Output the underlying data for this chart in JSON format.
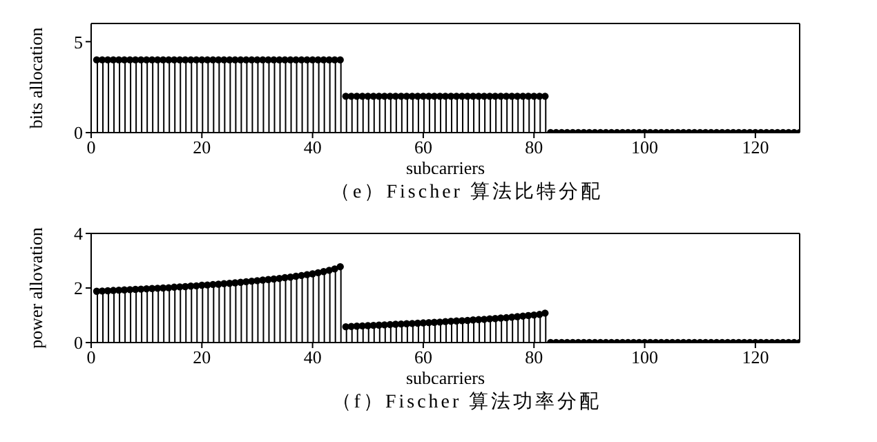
{
  "chart_data": [
    {
      "type": "lollipop",
      "title": "（e）Fischer 算法比特分配",
      "xlabel": "subcarriers",
      "ylabel": "bits allocation",
      "marker": "circle",
      "xlim": [
        0,
        128
      ],
      "xticks": [
        0,
        20,
        40,
        60,
        80,
        100,
        120
      ],
      "ylim": [
        0,
        6
      ],
      "yticks": [
        0,
        5
      ],
      "x": [
        1,
        2,
        3,
        4,
        5,
        6,
        7,
        8,
        9,
        10,
        11,
        12,
        13,
        14,
        15,
        16,
        17,
        18,
        19,
        20,
        21,
        22,
        23,
        24,
        25,
        26,
        27,
        28,
        29,
        30,
        31,
        32,
        33,
        34,
        35,
        36,
        37,
        38,
        39,
        40,
        41,
        42,
        43,
        44,
        45,
        46,
        47,
        48,
        49,
        50,
        51,
        52,
        53,
        54,
        55,
        56,
        57,
        58,
        59,
        60,
        61,
        62,
        63,
        64,
        65,
        66,
        67,
        68,
        69,
        70,
        71,
        72,
        73,
        74,
        75,
        76,
        77,
        78,
        79,
        80,
        81,
        82,
        83,
        84,
        85,
        86,
        87,
        88,
        89,
        90,
        91,
        92,
        93,
        94,
        95,
        96,
        97,
        98,
        99,
        100,
        101,
        102,
        103,
        104,
        105,
        106,
        107,
        108,
        109,
        110,
        111,
        112,
        113,
        114,
        115,
        116,
        117,
        118,
        119,
        120,
        121,
        122,
        123,
        124,
        125,
        126,
        127,
        128
      ],
      "series": [
        {
          "color": "#000000",
          "values": [
            4,
            4,
            4,
            4,
            4,
            4,
            4,
            4,
            4,
            4,
            4,
            4,
            4,
            4,
            4,
            4,
            4,
            4,
            4,
            4,
            4,
            4,
            4,
            4,
            4,
            4,
            4,
            4,
            4,
            4,
            4,
            4,
            4,
            4,
            4,
            4,
            4,
            4,
            4,
            4,
            4,
            4,
            4,
            4,
            4,
            2,
            2,
            2,
            2,
            2,
            2,
            2,
            2,
            2,
            2,
            2,
            2,
            2,
            2,
            2,
            2,
            2,
            2,
            2,
            2,
            2,
            2,
            2,
            2,
            2,
            2,
            2,
            2,
            2,
            2,
            2,
            2,
            2,
            2,
            2,
            2,
            2,
            0,
            0,
            0,
            0,
            0,
            0,
            0,
            0,
            0,
            0,
            0,
            0,
            0,
            0,
            0,
            0,
            0,
            0,
            0,
            0,
            0,
            0,
            0,
            0,
            0,
            0,
            0,
            0,
            0,
            0,
            0,
            0,
            0,
            0,
            0,
            0,
            0,
            0,
            0,
            0,
            0,
            0,
            0,
            0,
            0,
            0
          ]
        }
      ]
    },
    {
      "type": "lollipop",
      "title": "（f）Fischer 算法功率分配",
      "xlabel": "subcarriers",
      "ylabel": "power allovation",
      "marker": "circle",
      "xlim": [
        0,
        128
      ],
      "xticks": [
        0,
        20,
        40,
        60,
        80,
        100,
        120
      ],
      "ylim": [
        0,
        4
      ],
      "yticks": [
        0,
        2,
        4
      ],
      "x": [
        1,
        2,
        3,
        4,
        5,
        6,
        7,
        8,
        9,
        10,
        11,
        12,
        13,
        14,
        15,
        16,
        17,
        18,
        19,
        20,
        21,
        22,
        23,
        24,
        25,
        26,
        27,
        28,
        29,
        30,
        31,
        32,
        33,
        34,
        35,
        36,
        37,
        38,
        39,
        40,
        41,
        42,
        43,
        44,
        45,
        46,
        47,
        48,
        49,
        50,
        51,
        52,
        53,
        54,
        55,
        56,
        57,
        58,
        59,
        60,
        61,
        62,
        63,
        64,
        65,
        66,
        67,
        68,
        69,
        70,
        71,
        72,
        73,
        74,
        75,
        76,
        77,
        78,
        79,
        80,
        81,
        82,
        83,
        84,
        85,
        86,
        87,
        88,
        89,
        90,
        91,
        92,
        93,
        94,
        95,
        96,
        97,
        98,
        99,
        100,
        101,
        102,
        103,
        104,
        105,
        106,
        107,
        108,
        109,
        110,
        111,
        112,
        113,
        114,
        115,
        116,
        117,
        118,
        119,
        120,
        121,
        122,
        123,
        124,
        125,
        126,
        127,
        128
      ],
      "series": [
        {
          "color": "#000000",
          "values": [
            1.88,
            1.89,
            1.9,
            1.91,
            1.92,
            1.93,
            1.94,
            1.95,
            1.96,
            1.97,
            1.98,
            1.99,
            2.0,
            2.01,
            2.03,
            2.04,
            2.05,
            2.07,
            2.08,
            2.1,
            2.11,
            2.13,
            2.14,
            2.16,
            2.17,
            2.19,
            2.21,
            2.23,
            2.25,
            2.27,
            2.29,
            2.31,
            2.33,
            2.35,
            2.38,
            2.4,
            2.43,
            2.46,
            2.49,
            2.52,
            2.56,
            2.6,
            2.65,
            2.7,
            2.78,
            0.58,
            0.59,
            0.6,
            0.61,
            0.62,
            0.63,
            0.64,
            0.65,
            0.66,
            0.67,
            0.68,
            0.69,
            0.7,
            0.71,
            0.72,
            0.73,
            0.74,
            0.75,
            0.77,
            0.78,
            0.79,
            0.8,
            0.81,
            0.83,
            0.84,
            0.85,
            0.87,
            0.88,
            0.9,
            0.91,
            0.93,
            0.95,
            0.97,
            0.99,
            1.01,
            1.03,
            1.08,
            0,
            0,
            0,
            0,
            0,
            0,
            0,
            0,
            0,
            0,
            0,
            0,
            0,
            0,
            0,
            0,
            0,
            0,
            0,
            0,
            0,
            0,
            0,
            0,
            0,
            0,
            0,
            0,
            0,
            0,
            0,
            0,
            0,
            0,
            0,
            0,
            0,
            0,
            0,
            0,
            0,
            0,
            0,
            0,
            0,
            0
          ]
        }
      ]
    }
  ]
}
